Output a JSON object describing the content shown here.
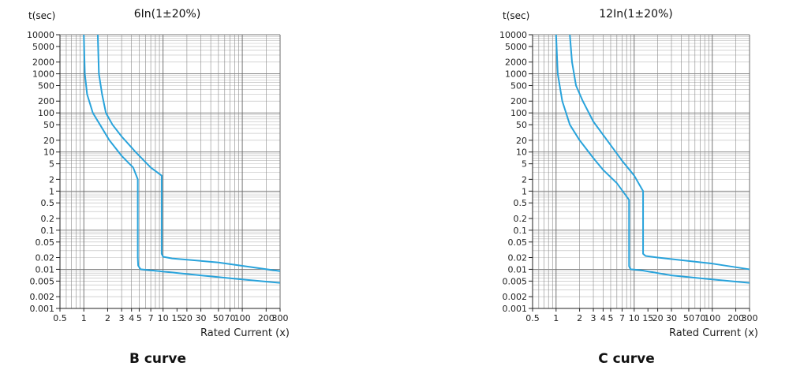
{
  "chart_data": [
    {
      "type": "line",
      "title": "6In(1±20%)",
      "ylabel": "t(sec)",
      "xlabel": "Rated Current (x)",
      "caption": "B  curve",
      "x_scale": "log",
      "y_scale": "log",
      "xlim": [
        0.5,
        300
      ],
      "ylim": [
        0.001,
        10000
      ],
      "x_ticks": [
        {
          "v": 0.5,
          "label": "0.5"
        },
        {
          "v": 1,
          "label": "1"
        },
        {
          "v": 2,
          "label": "2"
        },
        {
          "v": 3,
          "label": "3"
        },
        {
          "v": 4,
          "label": "4"
        },
        {
          "v": 5,
          "label": "5"
        },
        {
          "v": 7,
          "label": "7"
        },
        {
          "v": 10,
          "label": "10"
        },
        {
          "v": 15,
          "label": "15"
        },
        {
          "v": 20,
          "label": "20"
        },
        {
          "v": 30,
          "label": "30"
        },
        {
          "v": 50,
          "label": "50"
        },
        {
          "v": 70,
          "label": "70"
        },
        {
          "v": 100,
          "label": "100"
        },
        {
          "v": 200,
          "label": "200"
        },
        {
          "v": 300,
          "label": "300"
        }
      ],
      "y_ticks": [
        {
          "v": 10000,
          "label": "10000"
        },
        {
          "v": 5000,
          "label": "5000"
        },
        {
          "v": 2000,
          "label": "2000"
        },
        {
          "v": 1000,
          "label": "1000"
        },
        {
          "v": 500,
          "label": "500"
        },
        {
          "v": 200,
          "label": "200"
        },
        {
          "v": 100,
          "label": "100"
        },
        {
          "v": 50,
          "label": "50"
        },
        {
          "v": 20,
          "label": "20"
        },
        {
          "v": 10,
          "label": "10"
        },
        {
          "v": 5,
          "label": "5"
        },
        {
          "v": 2,
          "label": "2"
        },
        {
          "v": 1,
          "label": "1"
        },
        {
          "v": 0.5,
          "label": "0.5"
        },
        {
          "v": 0.2,
          "label": "0.2"
        },
        {
          "v": 0.1,
          "label": "0.1"
        },
        {
          "v": 0.05,
          "label": "0.05"
        },
        {
          "v": 0.02,
          "label": "0.02"
        },
        {
          "v": 0.01,
          "label": "0.01"
        },
        {
          "v": 0.005,
          "label": "0.005"
        },
        {
          "v": 0.002,
          "label": "0.002"
        },
        {
          "v": 0.001,
          "label": "0.001"
        }
      ],
      "grid": true,
      "line_color": "#29a3db",
      "series": [
        {
          "points": [
            [
              1.0,
              10000
            ],
            [
              1.03,
              1000
            ],
            [
              1.1,
              300
            ],
            [
              1.3,
              100
            ],
            [
              1.6,
              50
            ],
            [
              2.1,
              20
            ],
            [
              3.0,
              8
            ],
            [
              4.2,
              4
            ],
            [
              4.8,
              2
            ],
            [
              4.8,
              0.2
            ],
            [
              4.8,
              0.02
            ],
            [
              4.85,
              0.0125
            ],
            [
              5.2,
              0.01
            ],
            [
              30,
              0.007
            ],
            [
              100,
              0.0055
            ],
            [
              300,
              0.0045
            ]
          ]
        },
        {
          "points": [
            [
              1.5,
              10000
            ],
            [
              1.55,
              1000
            ],
            [
              1.7,
              300
            ],
            [
              1.9,
              100
            ],
            [
              2.3,
              50
            ],
            [
              3.0,
              25
            ],
            [
              4.5,
              10
            ],
            [
              7.0,
              4
            ],
            [
              9.6,
              2.5
            ],
            [
              9.6,
              0.2
            ],
            [
              9.6,
              0.025
            ],
            [
              10,
              0.021
            ],
            [
              13,
              0.019
            ],
            [
              50,
              0.015
            ],
            [
              300,
              0.009
            ]
          ]
        }
      ]
    },
    {
      "type": "line",
      "title": "12In(1±20%)",
      "ylabel": "t(sec)",
      "xlabel": "Rated Current (x)",
      "caption": "C  curve",
      "x_scale": "log",
      "y_scale": "log",
      "xlim": [
        0.5,
        300
      ],
      "ylim": [
        0.001,
        10000
      ],
      "x_ticks": [
        {
          "v": 0.5,
          "label": "0.5"
        },
        {
          "v": 1,
          "label": "1"
        },
        {
          "v": 2,
          "label": "2"
        },
        {
          "v": 3,
          "label": "3"
        },
        {
          "v": 4,
          "label": "4"
        },
        {
          "v": 5,
          "label": "5"
        },
        {
          "v": 7,
          "label": "7"
        },
        {
          "v": 10,
          "label": "10"
        },
        {
          "v": 15,
          "label": "15"
        },
        {
          "v": 20,
          "label": "20"
        },
        {
          "v": 30,
          "label": "30"
        },
        {
          "v": 50,
          "label": "50"
        },
        {
          "v": 70,
          "label": "70"
        },
        {
          "v": 100,
          "label": "100"
        },
        {
          "v": 200,
          "label": "200"
        },
        {
          "v": 300,
          "label": "300"
        }
      ],
      "y_ticks": [
        {
          "v": 10000,
          "label": "10000"
        },
        {
          "v": 5000,
          "label": "5000"
        },
        {
          "v": 2000,
          "label": "2000"
        },
        {
          "v": 1000,
          "label": "1000"
        },
        {
          "v": 500,
          "label": "500"
        },
        {
          "v": 200,
          "label": "200"
        },
        {
          "v": 100,
          "label": "100"
        },
        {
          "v": 50,
          "label": "50"
        },
        {
          "v": 20,
          "label": "20"
        },
        {
          "v": 10,
          "label": "10"
        },
        {
          "v": 5,
          "label": "5"
        },
        {
          "v": 2,
          "label": "2"
        },
        {
          "v": 1,
          "label": "1"
        },
        {
          "v": 0.5,
          "label": "0.5"
        },
        {
          "v": 0.2,
          "label": "0.2"
        },
        {
          "v": 0.1,
          "label": "0.1"
        },
        {
          "v": 0.05,
          "label": "0.05"
        },
        {
          "v": 0.02,
          "label": "0.02"
        },
        {
          "v": 0.01,
          "label": "0.01"
        },
        {
          "v": 0.005,
          "label": "0.005"
        },
        {
          "v": 0.002,
          "label": "0.002"
        },
        {
          "v": 0.001,
          "label": "0.001"
        }
      ],
      "grid": true,
      "line_color": "#29a3db",
      "series": [
        {
          "points": [
            [
              1.0,
              10000
            ],
            [
              1.05,
              1000
            ],
            [
              1.2,
              200
            ],
            [
              1.5,
              50
            ],
            [
              2,
              20
            ],
            [
              3,
              7
            ],
            [
              4,
              3.5
            ],
            [
              6,
              1.6
            ],
            [
              8.6,
              0.6
            ],
            [
              8.6,
              0.1
            ],
            [
              8.6,
              0.012
            ],
            [
              9,
              0.01
            ],
            [
              12,
              0.0095
            ],
            [
              30,
              0.007
            ],
            [
              100,
              0.0055
            ],
            [
              300,
              0.0045
            ]
          ]
        },
        {
          "points": [
            [
              1.5,
              10000
            ],
            [
              1.6,
              2000
            ],
            [
              1.8,
              500
            ],
            [
              2.2,
              200
            ],
            [
              3,
              60
            ],
            [
              4.5,
              20
            ],
            [
              7,
              6
            ],
            [
              10,
              2.5
            ],
            [
              13,
              1
            ],
            [
              13,
              0.3
            ],
            [
              13,
              0.025
            ],
            [
              14,
              0.022
            ],
            [
              20,
              0.02
            ],
            [
              100,
              0.014
            ],
            [
              300,
              0.01
            ]
          ]
        }
      ]
    }
  ]
}
